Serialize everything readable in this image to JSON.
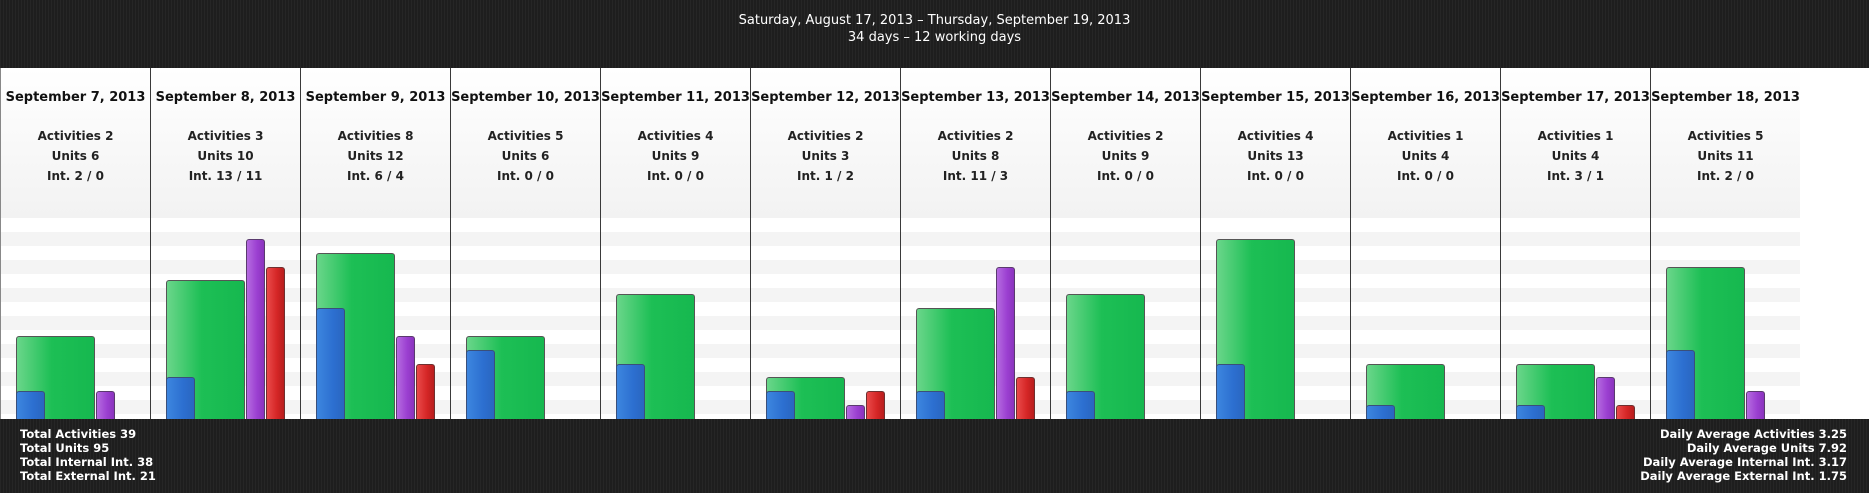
{
  "header": {
    "range": "Saturday, August 17, 2013 – Thursday, September 19, 2013",
    "summary": "34 days – 12 working days"
  },
  "colors": {
    "units": "#1dbf55",
    "activities": "#2c6fd0",
    "internal": "#9b3fd1",
    "external": "#d42525"
  },
  "chart_data": {
    "type": "bar",
    "categories": [
      "September 7, 2013",
      "September 8, 2013",
      "September 9, 2013",
      "September 10, 2013",
      "September 11, 2013",
      "September 12, 2013",
      "September 13, 2013",
      "September 14, 2013",
      "September 15, 2013",
      "September 16, 2013",
      "September 17, 2013",
      "September 18, 2013"
    ],
    "series": [
      {
        "name": "Activities",
        "values": [
          2,
          3,
          8,
          5,
          4,
          2,
          2,
          2,
          4,
          1,
          1,
          5
        ]
      },
      {
        "name": "Units",
        "values": [
          6,
          10,
          12,
          6,
          9,
          3,
          8,
          9,
          13,
          4,
          4,
          11
        ]
      },
      {
        "name": "Int.",
        "values": [
          2,
          13,
          6,
          0,
          0,
          1,
          11,
          0,
          0,
          0,
          3,
          2
        ]
      },
      {
        "name": "Ext.",
        "values": [
          0,
          11,
          4,
          0,
          0,
          2,
          3,
          0,
          0,
          0,
          1,
          0
        ]
      }
    ],
    "ylim": [
      0,
      14.5
    ]
  },
  "days": [
    {
      "date": "September 7, 2013",
      "activities": "Activities 2",
      "units": "Units 6",
      "int": "Int. 2 / 0"
    },
    {
      "date": "September 8, 2013",
      "activities": "Activities 3",
      "units": "Units 10",
      "int": "Int. 13 / 11"
    },
    {
      "date": "September 9, 2013",
      "activities": "Activities 8",
      "units": "Units 12",
      "int": "Int. 6 / 4"
    },
    {
      "date": "September 10, 2013",
      "activities": "Activities 5",
      "units": "Units 6",
      "int": "Int. 0 / 0"
    },
    {
      "date": "September 11, 2013",
      "activities": "Activities 4",
      "units": "Units 9",
      "int": "Int. 0 / 0"
    },
    {
      "date": "September 12, 2013",
      "activities": "Activities 2",
      "units": "Units 3",
      "int": "Int. 1 / 2"
    },
    {
      "date": "September 13, 2013",
      "activities": "Activities 2",
      "units": "Units 8",
      "int": "Int. 11 / 3"
    },
    {
      "date": "September 14, 2013",
      "activities": "Activities 2",
      "units": "Units 9",
      "int": "Int. 0 / 0"
    },
    {
      "date": "September 15, 2013",
      "activities": "Activities 4",
      "units": "Units 13",
      "int": "Int. 0 / 0"
    },
    {
      "date": "September 16, 2013",
      "activities": "Activities 1",
      "units": "Units 4",
      "int": "Int. 0 / 0"
    },
    {
      "date": "September 17, 2013",
      "activities": "Activities 1",
      "units": "Units 4",
      "int": "Int. 3 / 1"
    },
    {
      "date": "September 18, 2013",
      "activities": "Activities 5",
      "units": "Units 11",
      "int": "Int. 2 / 0"
    }
  ],
  "footer": {
    "left": [
      "Total Activities 39",
      "Total Units 95",
      "Total Internal Int. 38",
      "Total External Int. 21"
    ],
    "right": [
      "Daily Average Activities 3.25",
      "Daily Average Units 7.92",
      "Daily Average Internal Int. 3.17",
      "Daily Average External Int. 1.75"
    ]
  }
}
